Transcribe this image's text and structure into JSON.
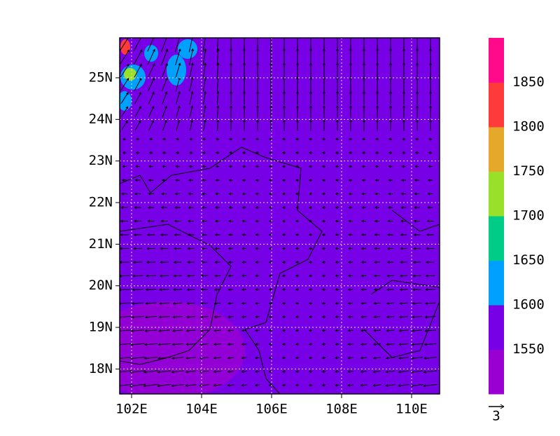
{
  "map": {
    "lon_range": [
      101.66,
      110.8
    ],
    "lat_range": [
      17.4,
      25.96
    ],
    "lon_ticks": [
      {
        "value": 102,
        "label": "102E"
      },
      {
        "value": 104,
        "label": "104E"
      },
      {
        "value": 106,
        "label": "106E"
      },
      {
        "value": 108,
        "label": "108E"
      },
      {
        "value": 110,
        "label": "110E"
      }
    ],
    "lat_ticks": [
      {
        "value": 18,
        "label": "18N"
      },
      {
        "value": 19,
        "label": "19N"
      },
      {
        "value": 20,
        "label": "20N"
      },
      {
        "value": 21,
        "label": "21N"
      },
      {
        "value": 22,
        "label": "22N"
      },
      {
        "value": 23,
        "label": "23N"
      },
      {
        "value": 24,
        "label": "24N"
      },
      {
        "value": 25,
        "label": "25N"
      }
    ]
  },
  "colorbar": {
    "levels": [
      1550,
      1600,
      1650,
      1700,
      1750,
      1800,
      1850
    ],
    "colors": [
      "#9a00d2",
      "#7800e6",
      "#00a0ff",
      "#00cc88",
      "#99e02b",
      "#e6a82a",
      "#ff3a3a",
      "#ff0a8a"
    ]
  },
  "vector_reference": 3
}
